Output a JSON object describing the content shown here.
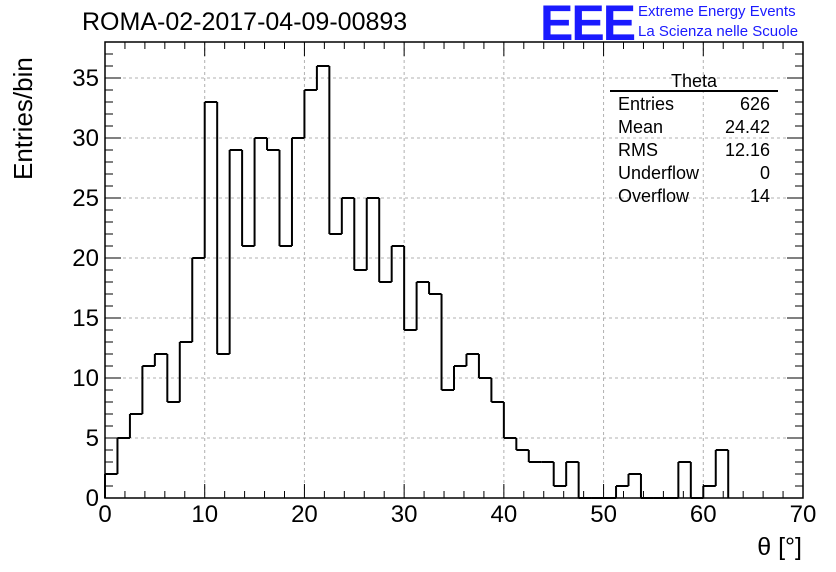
{
  "header": {
    "run_id": "ROMA-02-2017-04-09-00893",
    "logo_text": "EEE",
    "logo_line1": "Extreme Energy Events",
    "logo_line2": "La Scienza nelle Scuole",
    "logo_color": "#1a1aff"
  },
  "stats_box": {
    "title": "Theta",
    "rows": [
      {
        "label": "Entries",
        "value": "626"
      },
      {
        "label": "Mean",
        "value": "24.42"
      },
      {
        "label": "RMS",
        "value": "12.16"
      },
      {
        "label": "Underflow",
        "value": "0"
      },
      {
        "label": "Overflow",
        "value": "14"
      }
    ]
  },
  "chart_data": {
    "type": "bar",
    "style": "step-histogram",
    "title": "ROMA-02-2017-04-09-00893",
    "xlabel": "θ [°]",
    "ylabel": "Entries/bin",
    "xlim": [
      0,
      70
    ],
    "ylim": [
      0,
      38
    ],
    "grid": true,
    "bin_edges_start": 0,
    "bin_width": 1.25,
    "values": [
      2,
      5,
      7,
      11,
      12,
      8,
      13,
      20,
      33,
      12,
      29,
      21,
      30,
      29,
      21,
      30,
      34,
      36,
      22,
      25,
      19,
      25,
      18,
      21,
      14,
      18,
      17,
      9,
      11,
      12,
      10,
      8,
      5,
      4,
      3,
      3,
      1,
      3,
      0,
      0,
      0,
      1,
      2,
      0,
      0,
      0,
      3,
      0,
      1,
      4
    ],
    "x_ticks": [
      0,
      10,
      20,
      30,
      40,
      50,
      60,
      70
    ],
    "y_ticks": [
      0,
      5,
      10,
      15,
      20,
      25,
      30,
      35
    ],
    "line_color": "#000000",
    "grid_color": "#b0b0b0"
  }
}
